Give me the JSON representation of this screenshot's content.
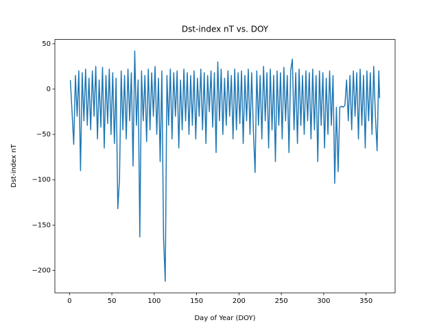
{
  "chart_data": {
    "type": "line",
    "title": "Dst-index nT vs. DOY",
    "x_label": "Day of Year (DOY)",
    "y_label": "Dst-index nT",
    "xlim": [
      -17.25,
      384.25
    ],
    "ylim": [
      -224.7,
      54.7
    ],
    "xticks": [
      0,
      50,
      100,
      150,
      200,
      250,
      300,
      350
    ],
    "yticks": [
      {
        "value": -200,
        "label": "−200"
      },
      {
        "value": -150,
        "label": "−150"
      },
      {
        "value": -100,
        "label": "−100"
      },
      {
        "value": -50,
        "label": "−50"
      },
      0,
      50
    ],
    "grid": false,
    "series": [
      {
        "color": "#1f77b4",
        "x": [
          1,
          3,
          5,
          7,
          9,
          11,
          13,
          15,
          17,
          19,
          21,
          23,
          25,
          27,
          29,
          31,
          33,
          35,
          37,
          39,
          41,
          43,
          45,
          47,
          49,
          51,
          53,
          55,
          57,
          59,
          61,
          63,
          65,
          67,
          69,
          71,
          73,
          75,
          77,
          79,
          81,
          83,
          85,
          87,
          89,
          91,
          93,
          95,
          97,
          99,
          101,
          103,
          105,
          107,
          109,
          111,
          113,
          115,
          117,
          119,
          121,
          123,
          125,
          127,
          129,
          131,
          133,
          135,
          137,
          139,
          141,
          143,
          145,
          147,
          149,
          151,
          153,
          155,
          157,
          159,
          161,
          163,
          165,
          167,
          169,
          171,
          173,
          175,
          177,
          179,
          181,
          183,
          185,
          187,
          189,
          191,
          193,
          195,
          197,
          199,
          201,
          203,
          205,
          207,
          209,
          211,
          213,
          215,
          217,
          219,
          221,
          223,
          225,
          227,
          229,
          231,
          233,
          235,
          237,
          239,
          241,
          243,
          245,
          247,
          249,
          251,
          253,
          255,
          257,
          259,
          261,
          263,
          265,
          267,
          269,
          271,
          273,
          275,
          277,
          279,
          281,
          283,
          285,
          287,
          289,
          291,
          293,
          295,
          297,
          299,
          301,
          303,
          305,
          307,
          309,
          311,
          313,
          315,
          317,
          319,
          321,
          323,
          325,
          327,
          329,
          331,
          333,
          335,
          337,
          339,
          341,
          343,
          345,
          347,
          349,
          351,
          353,
          355,
          357,
          359,
          361,
          363,
          365,
          366
        ],
        "values": [
          10,
          -25,
          -61,
          15,
          -30,
          20,
          -90,
          18,
          -35,
          22,
          -40,
          12,
          -45,
          20,
          -30,
          25,
          -55,
          10,
          -42,
          24,
          -65,
          15,
          -38,
          22,
          -50,
          18,
          -60,
          12,
          -132,
          -100,
          20,
          -45,
          15,
          -55,
          22,
          -35,
          18,
          -85,
          42,
          -40,
          10,
          -163,
          20,
          -35,
          15,
          -58,
          22,
          -45,
          18,
          -30,
          25,
          -50,
          12,
          -80,
          20,
          -165,
          -212,
          15,
          -40,
          22,
          -55,
          18,
          -30,
          20,
          -65,
          10,
          -45,
          22,
          -35,
          18,
          -50,
          15,
          -40,
          20,
          -55,
          12,
          -30,
          22,
          -45,
          18,
          -60,
          15,
          -25,
          20,
          -42,
          18,
          -70,
          30,
          -35,
          22,
          -50,
          12,
          -40,
          20,
          -30,
          15,
          -55,
          22,
          -45,
          18,
          -38,
          20,
          -60,
          15,
          -35,
          22,
          -50,
          18,
          -45,
          -92,
          20,
          -40,
          15,
          -55,
          25,
          -35,
          18,
          -65,
          22,
          -45,
          15,
          -80,
          20,
          -40,
          18,
          -55,
          24,
          -35,
          15,
          -70,
          20,
          33,
          -45,
          18,
          -60,
          22,
          -40,
          15,
          -50,
          20,
          -35,
          18,
          -55,
          22,
          -45,
          15,
          -80,
          20,
          -40,
          18,
          -65,
          12,
          -50,
          20,
          -40,
          15,
          -104,
          -20,
          -91,
          -20,
          -19,
          -20,
          -18,
          10,
          -35,
          15,
          -45,
          20,
          -30,
          18,
          -55,
          22,
          -40,
          15,
          -65,
          20,
          -35,
          18,
          -50,
          25,
          -30,
          -68,
          20,
          -10
        ]
      }
    ]
  }
}
